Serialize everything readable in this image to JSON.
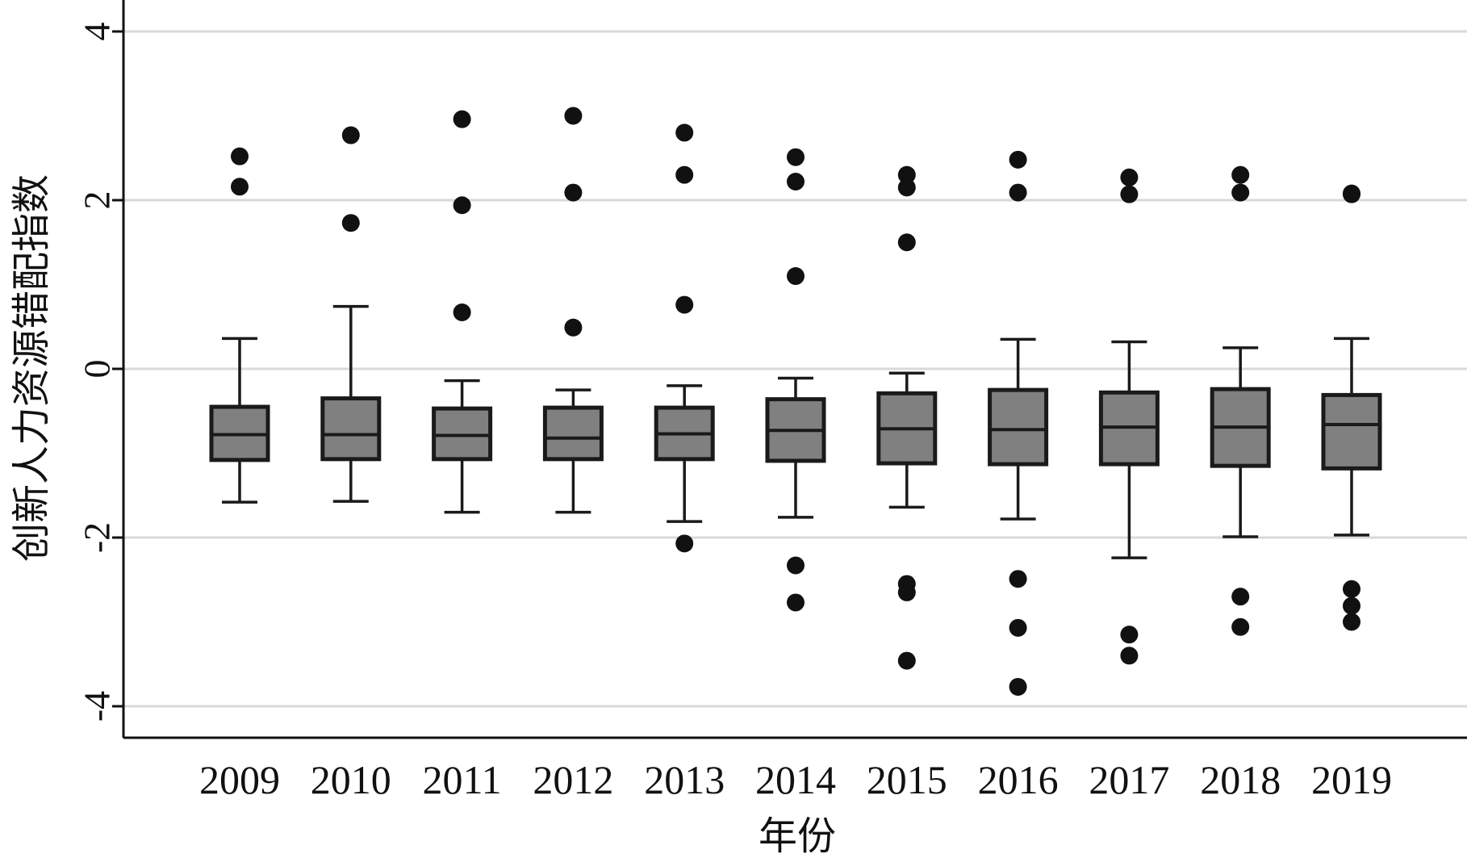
{
  "chart_data": {
    "type": "box",
    "xlabel": "年份",
    "ylabel": "创新人力资源错配指数",
    "ylim": [
      -4.35,
      4.4
    ],
    "yticks": [
      -4,
      -2,
      0,
      2,
      4
    ],
    "ytick_labels": [
      "-4",
      "-2",
      "0",
      "2",
      "4"
    ],
    "grid": "horizontal",
    "colors": {
      "box_fill": "#808080",
      "box_edge": "#1a1a1a",
      "outlier": "#111111",
      "grid": "#d9d9d9"
    },
    "categories": [
      "2009",
      "2010",
      "2011",
      "2012",
      "2013",
      "2014",
      "2015",
      "2016",
      "2017",
      "2018",
      "2019"
    ],
    "boxes": [
      {
        "category": "2009",
        "whisker_low": -1.58,
        "q1": -1.08,
        "median": -0.78,
        "q3": -0.45,
        "whisker_high": 0.36,
        "outliers": [
          2.52,
          2.16
        ]
      },
      {
        "category": "2010",
        "whisker_low": -1.57,
        "q1": -1.07,
        "median": -0.78,
        "q3": -0.35,
        "whisker_high": 0.74,
        "outliers": [
          2.77,
          1.73
        ]
      },
      {
        "category": "2011",
        "whisker_low": -1.7,
        "q1": -1.07,
        "median": -0.79,
        "q3": -0.47,
        "whisker_high": -0.14,
        "outliers": [
          2.96,
          1.94,
          0.67
        ]
      },
      {
        "category": "2012",
        "whisker_low": -1.7,
        "q1": -1.07,
        "median": -0.82,
        "q3": -0.46,
        "whisker_high": -0.25,
        "outliers": [
          3.0,
          2.09,
          0.49
        ]
      },
      {
        "category": "2013",
        "whisker_low": -1.81,
        "q1": -1.07,
        "median": -0.77,
        "q3": -0.46,
        "whisker_high": -0.2,
        "outliers": [
          2.8,
          2.3,
          0.76,
          -2.07
        ]
      },
      {
        "category": "2014",
        "whisker_low": -1.76,
        "q1": -1.09,
        "median": -0.73,
        "q3": -0.36,
        "whisker_high": -0.11,
        "outliers": [
          2.51,
          2.22,
          1.1,
          -2.33,
          -2.77
        ]
      },
      {
        "category": "2015",
        "whisker_low": -1.64,
        "q1": -1.12,
        "median": -0.71,
        "q3": -0.29,
        "whisker_high": -0.05,
        "outliers": [
          2.3,
          2.15,
          1.5,
          -2.55,
          -2.65,
          -3.46
        ]
      },
      {
        "category": "2016",
        "whisker_low": -1.78,
        "q1": -1.13,
        "median": -0.72,
        "q3": -0.25,
        "whisker_high": 0.35,
        "outliers": [
          2.48,
          2.09,
          -2.49,
          -3.07,
          -3.77
        ]
      },
      {
        "category": "2017",
        "whisker_low": -2.24,
        "q1": -1.13,
        "median": -0.69,
        "q3": -0.28,
        "whisker_high": 0.32,
        "outliers": [
          2.27,
          2.07,
          -3.15,
          -3.4
        ]
      },
      {
        "category": "2018",
        "whisker_low": -1.99,
        "q1": -1.15,
        "median": -0.69,
        "q3": -0.24,
        "whisker_high": 0.25,
        "outliers": [
          2.3,
          2.09,
          -2.7,
          -3.06
        ]
      },
      {
        "category": "2019",
        "whisker_low": -1.97,
        "q1": -1.18,
        "median": -0.66,
        "q3": -0.31,
        "whisker_high": 0.36,
        "outliers": [
          2.08,
          2.07,
          -2.61,
          -2.81,
          -3.0
        ]
      }
    ]
  }
}
